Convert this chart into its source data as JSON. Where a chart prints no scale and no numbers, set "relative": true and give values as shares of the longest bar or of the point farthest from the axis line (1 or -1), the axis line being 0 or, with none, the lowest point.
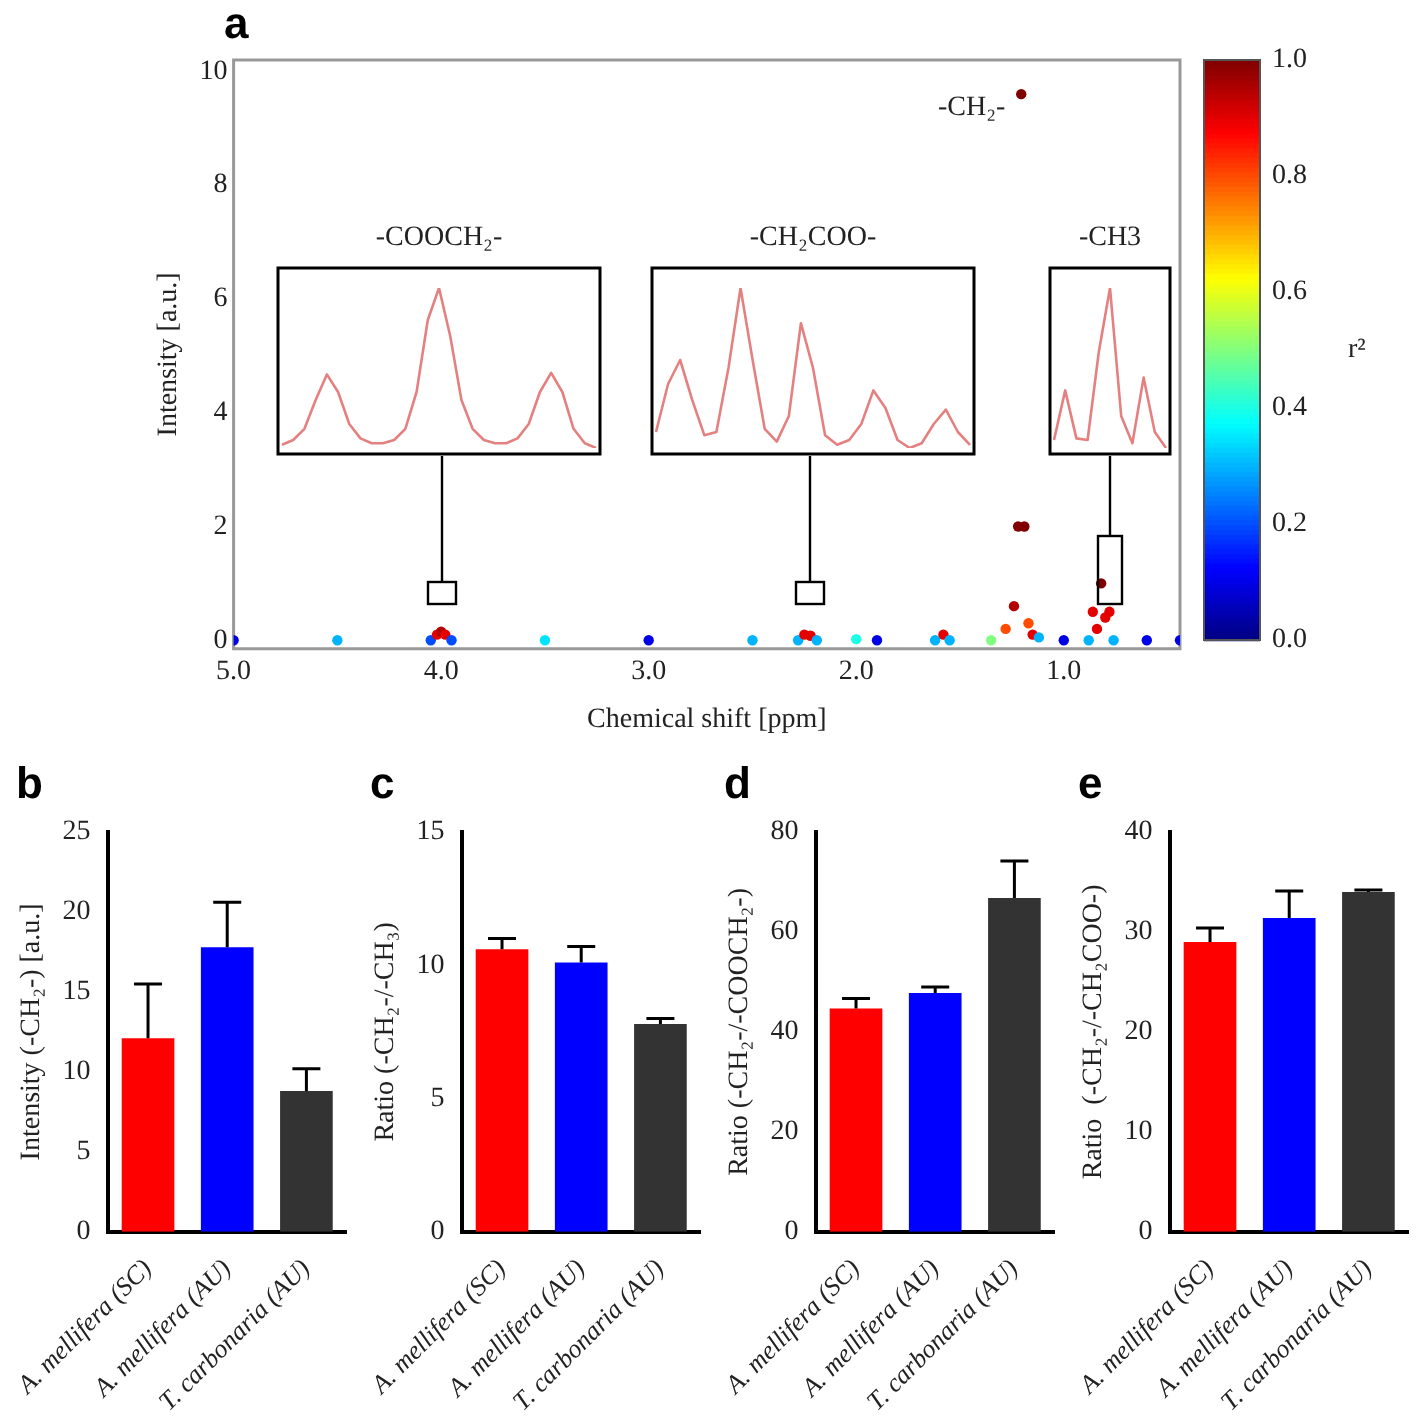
{
  "chart_data": [
    {
      "type": "scatter",
      "title": "a",
      "xlabel": "Chemical shift [ppm]",
      "ylabel": "Intensity [a.u.]",
      "clabel": "r²",
      "clim": [
        0,
        1
      ],
      "cticks": [
        {
          "value": 0,
          "label": "0.0"
        },
        {
          "value": 0.2,
          "label": "0.2"
        },
        {
          "value": 0.4,
          "label": "0.4"
        },
        {
          "value": 0.6,
          "label": "0.6"
        },
        {
          "value": 0.8,
          "label": "0.8"
        },
        {
          "value": 1,
          "label": "1.0"
        }
      ],
      "xlim": [
        5.0,
        0.44
      ],
      "xticks": [
        {
          "value": 5,
          "label": "5.0"
        },
        {
          "value": 4,
          "label": "4.0"
        },
        {
          "value": 3,
          "label": "3.0"
        },
        {
          "value": 2,
          "label": "2.0"
        },
        {
          "value": 1,
          "label": "1.0"
        }
      ],
      "ylim": [
        -0.15,
        10.2
      ],
      "yticks": [
        0,
        2,
        4,
        6,
        8,
        10
      ],
      "grid": false,
      "legend": false,
      "marker": "circle",
      "x": [
        5.0,
        4.5,
        4.05,
        4.02,
        4.0,
        3.98,
        3.95,
        3.5,
        3.0,
        2.5,
        2.28,
        2.25,
        2.22,
        2.19,
        2.0,
        1.9,
        1.62,
        1.58,
        1.55,
        1.35,
        1.28,
        1.24,
        1.22,
        1.205,
        1.19,
        1.17,
        1.15,
        1.12,
        1.0,
        0.88,
        0.86,
        0.84,
        0.82,
        0.8,
        0.78,
        0.76,
        0.6,
        0.44
      ],
      "series": [
        {
          "values": [
            0,
            0,
            0,
            0.1,
            0.15,
            0.1,
            0,
            0,
            0,
            0,
            0,
            0.1,
            0.08,
            0,
            0.02,
            0,
            0,
            0.1,
            0,
            0,
            0.2,
            0.6,
            2,
            9.6,
            2,
            0.3,
            0.1,
            0.05,
            0,
            0,
            0.5,
            0.2,
            1.0,
            0.4,
            0.5,
            0,
            0,
            0
          ],
          "cvalues": [
            0.1,
            0.3,
            0.2,
            0.9,
            0.95,
            0.9,
            0.2,
            0.35,
            0.1,
            0.3,
            0.3,
            0.9,
            0.9,
            0.3,
            0.4,
            0.1,
            0.3,
            0.9,
            0.3,
            0.5,
            0.8,
            0.95,
            1,
            1,
            1,
            0.8,
            0.9,
            0.3,
            0.1,
            0.3,
            0.9,
            0.9,
            1,
            0.9,
            0.9,
            0.3,
            0.1,
            0.1
          ]
        }
      ],
      "annotations": [
        "-CH₂-"
      ]
    },
    {
      "type": "line",
      "title": "-COOCH₂-",
      "relative": true,
      "color": "#e58080",
      "categories": [
        null,
        null,
        null,
        null,
        null,
        null,
        null,
        null,
        null,
        null,
        null,
        null,
        null,
        null,
        null,
        null,
        null,
        null,
        null,
        null,
        null,
        null,
        null,
        null,
        null,
        null,
        null,
        null,
        null
      ],
      "values": [
        0.02,
        0.05,
        0.12,
        0.3,
        0.46,
        0.35,
        0.15,
        0.06,
        0.03,
        0.03,
        0.05,
        0.12,
        0.35,
        0.8,
        1.0,
        0.7,
        0.3,
        0.12,
        0.05,
        0.03,
        0.03,
        0.06,
        0.15,
        0.35,
        0.47,
        0.35,
        0.12,
        0.03,
        0
      ]
    },
    {
      "type": "line",
      "title": "-CH₂COO-",
      "relative": true,
      "color": "#e58080",
      "categories": [
        null,
        null,
        null,
        null,
        null,
        null,
        null,
        null,
        null,
        null,
        null,
        null,
        null,
        null,
        null,
        null,
        null,
        null,
        null,
        null,
        null,
        null,
        null,
        null,
        null,
        null,
        null
      ],
      "values": [
        0.1,
        0.4,
        0.55,
        0.3,
        0.08,
        0.1,
        0.5,
        1.0,
        0.55,
        0.12,
        0.04,
        0.2,
        0.78,
        0.5,
        0.08,
        0.02,
        0.05,
        0.15,
        0.36,
        0.25,
        0.05,
        0,
        0.03,
        0.15,
        0.24,
        0.1,
        0.02
      ]
    },
    {
      "type": "line",
      "title": "-CH3",
      "relative": true,
      "color": "#e58080",
      "categories": [
        null,
        null,
        null,
        null,
        null,
        null,
        null,
        null,
        null,
        null,
        null
      ],
      "values": [
        0.05,
        0.36,
        0.06,
        0.05,
        0.6,
        1.0,
        0.2,
        0.03,
        0.44,
        0.1,
        0
      ]
    },
    {
      "type": "bar",
      "title": "b",
      "ylabel": "Intensity (-CH₂-) [a.u.]",
      "categories": [
        "A. mellifera (SC)",
        "A. mellifera (AU)",
        "T. carbonaria (AU)"
      ],
      "values": [
        12.1,
        17.8,
        8.8
      ],
      "errors": [
        [
          12.1,
          15.5
        ],
        [
          17.8,
          20.6
        ],
        [
          8.8,
          10.2
        ]
      ],
      "colors": [
        "#ff0000",
        "#0000ff",
        "#333333"
      ],
      "ylim": [
        0,
        25
      ],
      "yticks": [
        0,
        5,
        10,
        15,
        20,
        25
      ],
      "legend": false
    },
    {
      "type": "bar",
      "title": "c",
      "ylabel": "Ratio (-CH₂-/-CH₃)",
      "categories": [
        "A. mellifera (SC)",
        "A. mellifera (AU)",
        "T. carbonaria (AU)"
      ],
      "values": [
        10.6,
        10.1,
        7.8
      ],
      "errors": [
        [
          10.6,
          11.0
        ],
        [
          10.1,
          10.7
        ],
        [
          7.8,
          8.0
        ]
      ],
      "colors": [
        "#ff0000",
        "#0000ff",
        "#333333"
      ],
      "ylim": [
        0,
        15
      ],
      "yticks": [
        0,
        5,
        10,
        15
      ],
      "legend": false
    },
    {
      "type": "bar",
      "title": "d",
      "ylabel": "Ratio (-CH₂-/-COOCH₂-)",
      "categories": [
        "A. mellifera (SC)",
        "A. mellifera (AU)",
        "T. carbonaria (AU)"
      ],
      "values": [
        44.7,
        47.8,
        66.8
      ],
      "errors": [
        [
          44.7,
          46.7
        ],
        [
          47.8,
          49.0
        ],
        [
          66.8,
          74.2
        ]
      ],
      "colors": [
        "#ff0000",
        "#0000ff",
        "#333333"
      ],
      "ylim": [
        0,
        80
      ],
      "yticks": [
        0,
        20,
        40,
        60,
        80
      ],
      "legend": false
    },
    {
      "type": "bar",
      "title": "e",
      "ylabel": "Ratio  (-CH₂-/-CH₂COO-)",
      "categories": [
        "A. mellifera (SC)",
        "A. mellifera (AU)",
        "T. carbonaria (AU)"
      ],
      "values": [
        29.0,
        31.4,
        34.0
      ],
      "errors": [
        [
          29.0,
          30.4
        ],
        [
          31.4,
          34.1
        ],
        [
          34.0,
          34.2
        ]
      ],
      "colors": [
        "#ff0000",
        "#0000ff",
        "#333333"
      ],
      "ylim": [
        0,
        40
      ],
      "yticks": [
        0,
        10,
        20,
        30,
        40
      ],
      "legend": false
    }
  ]
}
